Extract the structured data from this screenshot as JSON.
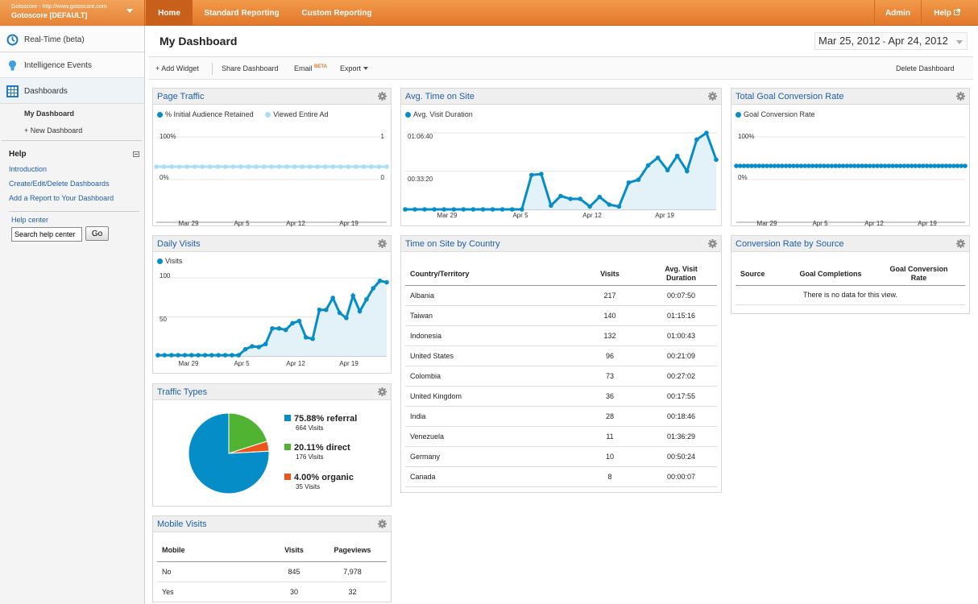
{
  "account": {
    "url": "Gotoscore - http://www.gotoscore.com",
    "name": "Gotoscore [DEFAULT]"
  },
  "nav": {
    "home": "Home",
    "standard": "Standard Reporting",
    "custom": "Custom Reporting",
    "admin": "Admin",
    "help": "Help"
  },
  "sidebar": {
    "realtime": "Real-Time (beta)",
    "intelligence": "Intelligence Events",
    "dashboards": "Dashboards",
    "my_dashboard": "My Dashboard",
    "new_dashboard": "+ New Dashboard",
    "help_title": "Help",
    "help_links": [
      "Introduction",
      "Create/Edit/Delete Dashboards",
      "Add a Report to Your Dashboard"
    ],
    "help_center": "Help center",
    "search_value": "Search help center",
    "go": "Go"
  },
  "header": {
    "title": "My Dashboard",
    "date_start": "Mar 25, 2012",
    "date_sep": " - ",
    "date_end": "Apr 24, 2012"
  },
  "toolbar": {
    "add_widget": "+ Add Widget",
    "share": "Share Dashboard",
    "email": "Email",
    "email_badge": "BETA",
    "export": "Export",
    "delete": "Delete Dashboard"
  },
  "widgets": {
    "page_traffic": {
      "title": "Page Traffic",
      "legend": [
        "% Initial Audience Retained",
        "Viewed Entire Ad"
      ],
      "y_left_top": "100%",
      "y_left_mid": "0%",
      "y_right_top": "1",
      "y_right_mid": "0"
    },
    "avg_time": {
      "title": "Avg. Time on Site",
      "legend": [
        "Avg. Visit Duration"
      ],
      "y_top": "01:06:40",
      "y_mid": "00:33:20"
    },
    "goal_rate": {
      "title": "Total Goal Conversion Rate",
      "legend": [
        "Goal Conversion Rate"
      ],
      "y_top": "100%",
      "y_mid": "0%"
    },
    "daily_visits": {
      "title": "Daily Visits",
      "legend": [
        "Visits"
      ],
      "y_top": "100",
      "y_mid": "50"
    },
    "traffic_types": {
      "title": "Traffic Types",
      "items": [
        {
          "label": "75.88% referral",
          "sub": "664 Visits",
          "pct": 75.88,
          "color": "#058dc7"
        },
        {
          "label": "20.11% direct",
          "sub": "176 Visits",
          "pct": 20.11,
          "color": "#50b432"
        },
        {
          "label": "4.00% organic",
          "sub": "35 Visits",
          "pct": 4.0,
          "color": "#ed561b"
        }
      ]
    },
    "mobile": {
      "title": "Mobile Visits",
      "headers": [
        "Mobile",
        "Visits",
        "Pageviews"
      ],
      "rows": [
        [
          "No",
          "845",
          "7,978"
        ],
        [
          "Yes",
          "30",
          "32"
        ]
      ]
    },
    "country": {
      "title": "Time on Site by Country",
      "headers": [
        "Country/Territory",
        "Visits",
        "Avg. Visit Duration"
      ],
      "rows": [
        [
          "Albania",
          "217",
          "00:07:50"
        ],
        [
          "Taiwan",
          "140",
          "01:15:16"
        ],
        [
          "Indonesia",
          "132",
          "01:00:43"
        ],
        [
          "United States",
          "96",
          "00:21:09"
        ],
        [
          "Colombia",
          "73",
          "00:27:02"
        ],
        [
          "United Kingdom",
          "36",
          "00:17:55"
        ],
        [
          "India",
          "28",
          "00:18:46"
        ],
        [
          "Venezuela",
          "11",
          "01:36:29"
        ],
        [
          "Germany",
          "10",
          "00:50:24"
        ],
        [
          "Canada",
          "8",
          "00:00:07"
        ]
      ]
    },
    "conv_source": {
      "title": "Conversion Rate by Source",
      "headers": [
        "Source",
        "Goal Completions",
        "Goal Conversion Rate"
      ],
      "empty": "There is no data for this view."
    }
  },
  "chart_data": [
    {
      "type": "line",
      "title": "Page Traffic",
      "x_ticks": [
        "Mar 29",
        "Apr 5",
        "Apr 12",
        "Apr 19"
      ],
      "series": [
        {
          "name": "% Initial Audience Retained",
          "values": [
            0,
            0,
            0,
            0,
            0,
            0,
            0,
            0,
            0,
            0,
            0,
            0,
            0,
            0,
            0,
            0,
            0,
            0,
            0,
            0,
            0,
            0,
            0,
            0,
            0,
            0,
            0,
            0,
            0,
            0,
            0
          ]
        },
        {
          "name": "Viewed Entire Ad",
          "values": [
            0,
            0,
            0,
            0,
            0,
            0,
            0,
            0,
            0,
            0,
            0,
            0,
            0,
            0,
            0,
            0,
            0,
            0,
            0,
            0,
            0,
            0,
            0,
            0,
            0,
            0,
            0,
            0,
            0,
            0,
            0
          ]
        }
      ],
      "ylim": [
        0,
        1
      ]
    },
    {
      "type": "area",
      "title": "Avg. Time on Site",
      "x_ticks": [
        "Mar 29",
        "Apr 5",
        "Apr 12",
        "Apr 19"
      ],
      "series": [
        {
          "name": "Avg. Visit Duration",
          "values_seconds": [
            0,
            0,
            0,
            0,
            0,
            0,
            0,
            0,
            0,
            0,
            0,
            0,
            0,
            1800,
            1850,
            200,
            700,
            550,
            550,
            150,
            650,
            250,
            150,
            1400,
            1550,
            2300,
            2700,
            2050,
            2800,
            2000,
            3650,
            4000,
            2600
          ]
        }
      ],
      "ylim_seconds": [
        0,
        4000
      ]
    },
    {
      "type": "line",
      "title": "Total Goal Conversion Rate",
      "x_ticks": [
        "Mar 29",
        "Apr 5",
        "Apr 12",
        "Apr 19"
      ],
      "series": [
        {
          "name": "Goal Conversion Rate",
          "values": [
            0,
            0,
            0,
            0,
            0,
            0,
            0,
            0,
            0,
            0,
            0,
            0,
            0,
            0,
            0,
            0,
            0,
            0,
            0,
            0,
            0,
            0,
            0,
            0,
            0,
            0,
            0,
            0,
            0,
            0,
            0,
            0,
            0,
            0,
            0,
            0,
            0,
            0,
            0,
            0,
            0,
            0,
            0,
            0,
            0,
            0,
            0,
            0,
            0,
            0,
            0,
            0,
            0,
            0,
            0,
            0,
            0,
            0,
            0,
            0,
            0
          ]
        }
      ],
      "ylim": [
        0,
        100
      ]
    },
    {
      "type": "area",
      "title": "Daily Visits",
      "x_ticks": [
        "Mar 29",
        "Apr 5",
        "Apr 12",
        "Apr 19"
      ],
      "series": [
        {
          "name": "Visits",
          "values": [
            1,
            1,
            1,
            1,
            1,
            1,
            1,
            1,
            1,
            1,
            1,
            1,
            1,
            9,
            13,
            12,
            16,
            37,
            37,
            35,
            44,
            47,
            25,
            23,
            62,
            62,
            78,
            58,
            51,
            81,
            60,
            76,
            91,
            101,
            99
          ]
        }
      ],
      "ylim": [
        0,
        100
      ]
    },
    {
      "type": "pie",
      "title": "Traffic Types",
      "categories": [
        "referral",
        "direct",
        "organic"
      ],
      "values": [
        75.88,
        20.11,
        4.0
      ],
      "visits": [
        664,
        176,
        35
      ]
    }
  ]
}
